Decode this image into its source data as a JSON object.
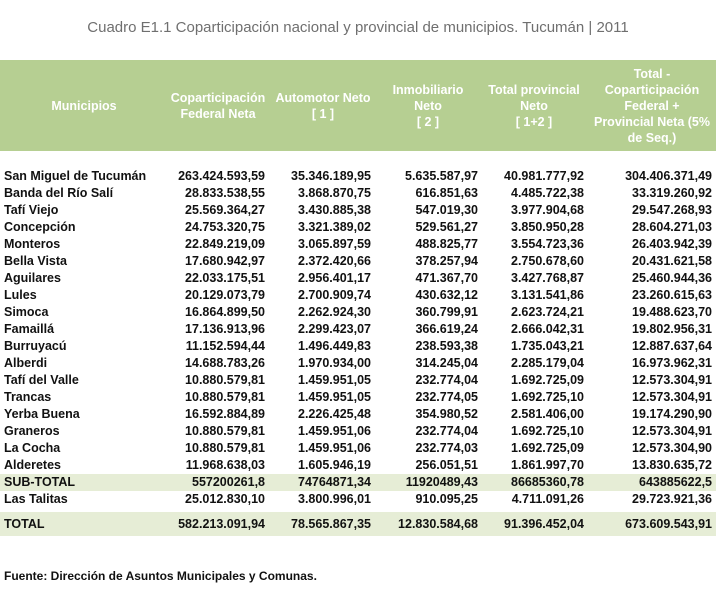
{
  "title": "Cuadro E1.1 Coparticipación nacional y provincial de municipios. Tucumán | 2011",
  "header": {
    "col0": "Municipios",
    "col1": "Coparticipación\nFederal Neta",
    "col2": "Automotor Neto\n[ 1 ]",
    "col3": "Inmobiliario\nNeto\n[ 2 ]",
    "col4": "Total provincial\nNeto\n[ 1+2 ]",
    "col5": "Total -\nCoparticipación\nFederal +\nProvincial Neta (5%\nde Seq.)"
  },
  "rows": [
    {
      "name": "San Miguel de Tucumán",
      "v1": "263.424.593,59",
      "v2": "35.346.189,95",
      "v3": "5.635.587,97",
      "v4": "40.981.777,92",
      "v5": "304.406.371,49"
    },
    {
      "name": "Banda del Río Salí",
      "v1": "28.833.538,55",
      "v2": "3.868.870,75",
      "v3": "616.851,63",
      "v4": "4.485.722,38",
      "v5": "33.319.260,92"
    },
    {
      "name": "Tafí Viejo",
      "v1": "25.569.364,27",
      "v2": "3.430.885,38",
      "v3": "547.019,30",
      "v4": "3.977.904,68",
      "v5": "29.547.268,93"
    },
    {
      "name": "Concepción",
      "v1": "24.753.320,75",
      "v2": "3.321.389,02",
      "v3": "529.561,27",
      "v4": "3.850.950,28",
      "v5": "28.604.271,03"
    },
    {
      "name": "Monteros",
      "v1": "22.849.219,09",
      "v2": "3.065.897,59",
      "v3": "488.825,77",
      "v4": "3.554.723,36",
      "v5": "26.403.942,39"
    },
    {
      "name": "Bella Vista",
      "v1": "17.680.942,97",
      "v2": "2.372.420,66",
      "v3": "378.257,94",
      "v4": "2.750.678,60",
      "v5": "20.431.621,58"
    },
    {
      "name": "Aguilares",
      "v1": "22.033.175,51",
      "v2": "2.956.401,17",
      "v3": "471.367,70",
      "v4": "3.427.768,87",
      "v5": "25.460.944,36"
    },
    {
      "name": "Lules",
      "v1": "20.129.073,79",
      "v2": "2.700.909,74",
      "v3": "430.632,12",
      "v4": "3.131.541,86",
      "v5": "23.260.615,63"
    },
    {
      "name": "Simoca",
      "v1": "16.864.899,50",
      "v2": "2.262.924,30",
      "v3": "360.799,91",
      "v4": "2.623.724,21",
      "v5": "19.488.623,70"
    },
    {
      "name": "Famaillá",
      "v1": "17.136.913,96",
      "v2": "2.299.423,07",
      "v3": "366.619,24",
      "v4": "2.666.042,31",
      "v5": "19.802.956,31"
    },
    {
      "name": "Burruyacú",
      "v1": "11.152.594,44",
      "v2": "1.496.449,83",
      "v3": "238.593,38",
      "v4": "1.735.043,21",
      "v5": "12.887.637,64"
    },
    {
      "name": "Alberdi",
      "v1": "14.688.783,26",
      "v2": "1.970.934,00",
      "v3": "314.245,04",
      "v4": "2.285.179,04",
      "v5": "16.973.962,31"
    },
    {
      "name": "Tafí del Valle",
      "v1": "10.880.579,81",
      "v2": "1.459.951,05",
      "v3": "232.774,04",
      "v4": "1.692.725,09",
      "v5": "12.573.304,91"
    },
    {
      "name": "Trancas",
      "v1": "10.880.579,81",
      "v2": "1.459.951,05",
      "v3": "232.774,05",
      "v4": "1.692.725,10",
      "v5": "12.573.304,91"
    },
    {
      "name": "Yerba Buena",
      "v1": "16.592.884,89",
      "v2": "2.226.425,48",
      "v3": "354.980,52",
      "v4": "2.581.406,00",
      "v5": "19.174.290,90"
    },
    {
      "name": "Graneros",
      "v1": "10.880.579,81",
      "v2": "1.459.951,06",
      "v3": "232.774,04",
      "v4": "1.692.725,10",
      "v5": "12.573.304,91"
    },
    {
      "name": "La Cocha",
      "v1": "10.880.579,81",
      "v2": "1.459.951,06",
      "v3": "232.774,03",
      "v4": "1.692.725,09",
      "v5": "12.573.304,90"
    },
    {
      "name": "Alderetes",
      "v1": "11.968.638,03",
      "v2": "1.605.946,19",
      "v3": "256.051,51",
      "v4": "1.861.997,70",
      "v5": "13.830.635,72"
    },
    {
      "name": "SUB-TOTAL",
      "v1": "557200261,8",
      "v2": "74764871,34",
      "v3": "11920489,43",
      "v4": "86685360,78",
      "v5": "643885622,5",
      "subtotal": true
    },
    {
      "name": "Las Talitas",
      "v1": "25.012.830,10",
      "v2": "3.800.996,01",
      "v3": "910.095,25",
      "v4": "4.711.091,26",
      "v5": "29.723.921,36"
    }
  ],
  "total": {
    "name": "TOTAL",
    "v1": "582.213.091,94",
    "v2": "78.565.867,35",
    "v3": "12.830.584,68",
    "v4": "91.396.452,04",
    "v5": "673.609.543,91"
  },
  "source": "Fuente: Dirección de Asuntos Municipales y Comunas.",
  "colors": {
    "header_bg": "#b6cf92",
    "band_bg": "#e6edd6",
    "title_text": "#6f6f6f"
  }
}
